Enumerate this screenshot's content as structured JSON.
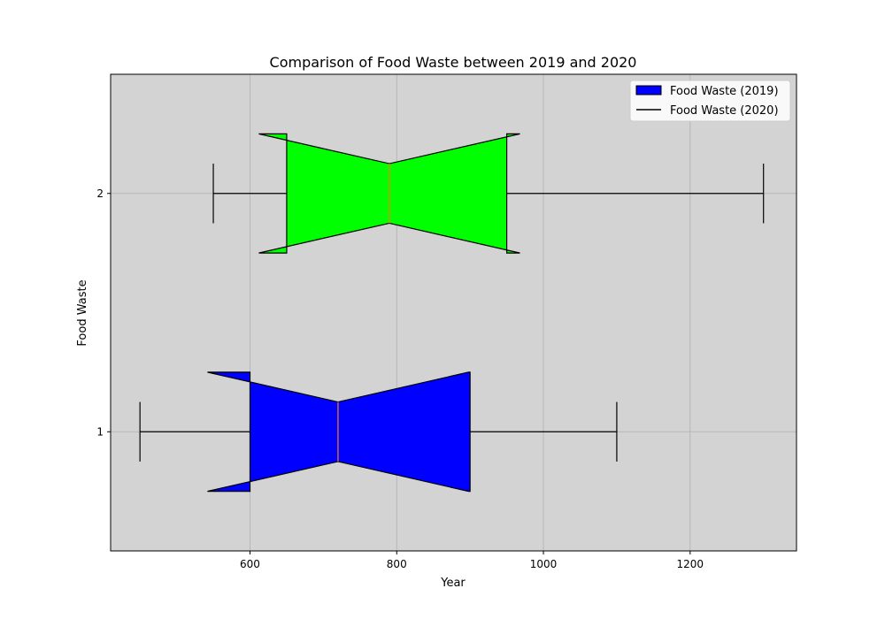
{
  "chart_data": {
    "type": "boxplot",
    "orientation": "horizontal",
    "notched": true,
    "title": "Comparison of Food Waste between 2019 and 2020",
    "xlabel": "Year",
    "ylabel": "Food Waste",
    "xlim": [
      410,
      1345
    ],
    "ylim": [
      0.5,
      2.5
    ],
    "xticks": [
      600,
      800,
      1000,
      1200
    ],
    "yticks": [
      1,
      2
    ],
    "grid": true,
    "background_color": "#d3d3d3",
    "legend": {
      "position": "top-right",
      "entries": [
        {
          "label": "Food Waste (2019)",
          "marker": "patch",
          "color": "#0000ff"
        },
        {
          "label": "Food Waste (2020)",
          "marker": "line",
          "color": "#000000"
        }
      ]
    },
    "series": [
      {
        "position": 1,
        "whisker_low": 450,
        "q1": 600,
        "median": 720,
        "q3": 900,
        "whisker_high": 1100,
        "notch_low": 542,
        "notch_high": 898,
        "notch_width": 0.25,
        "fill": "#0000ff"
      },
      {
        "position": 2,
        "whisker_low": 550,
        "q1": 650,
        "median": 790,
        "q3": 950,
        "whisker_high": 1300,
        "notch_low": 612,
        "notch_high": 968,
        "notch_width": 0.25,
        "fill": "#00ff00"
      }
    ],
    "median_color": "#ff7f0e"
  }
}
